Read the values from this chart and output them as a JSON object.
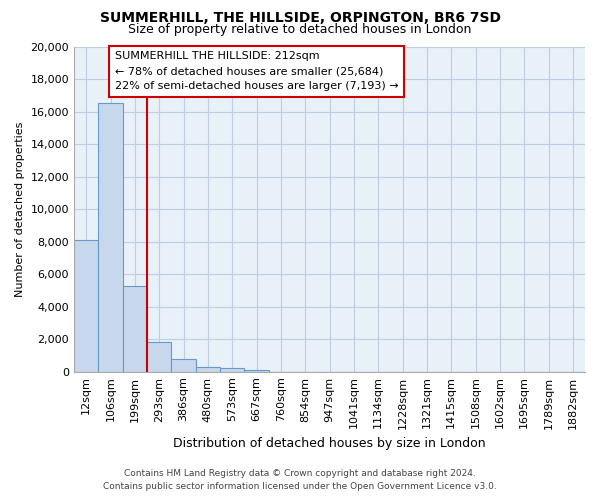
{
  "title": "SUMMERHILL, THE HILLSIDE, ORPINGTON, BR6 7SD",
  "subtitle": "Size of property relative to detached houses in London",
  "xlabel": "Distribution of detached houses by size in London",
  "ylabel": "Number of detached properties",
  "bar_labels": [
    "12sqm",
    "106sqm",
    "199sqm",
    "293sqm",
    "386sqm",
    "480sqm",
    "573sqm",
    "667sqm",
    "760sqm",
    "854sqm",
    "947sqm",
    "1041sqm",
    "1134sqm",
    "1228sqm",
    "1321sqm",
    "1415sqm",
    "1508sqm",
    "1602sqm",
    "1695sqm",
    "1789sqm",
    "1882sqm"
  ],
  "bar_values": [
    8100,
    16500,
    5300,
    1850,
    800,
    300,
    200,
    130,
    0,
    0,
    0,
    0,
    0,
    0,
    0,
    0,
    0,
    0,
    0,
    0,
    0
  ],
  "bar_color": "#c8d8ec",
  "bar_edge_color": "#6699cc",
  "vline_color": "#cc0000",
  "ylim": [
    0,
    20000
  ],
  "yticks": [
    0,
    2000,
    4000,
    6000,
    8000,
    10000,
    12000,
    14000,
    16000,
    18000,
    20000
  ],
  "annotation_title": "SUMMERHILL THE HILLSIDE: 212sqm",
  "annotation_line1": "← 78% of detached houses are smaller (25,684)",
  "annotation_line2": "22% of semi-detached houses are larger (7,193) →",
  "annotation_box_color": "#ffffff",
  "annotation_box_edge": "#cc0000",
  "footer_line1": "Contains HM Land Registry data © Crown copyright and database right 2024.",
  "footer_line2": "Contains public sector information licensed under the Open Government Licence v3.0.",
  "background_color": "#ffffff",
  "plot_bg_color": "#e8f0f8",
  "grid_color": "#c0cce0"
}
